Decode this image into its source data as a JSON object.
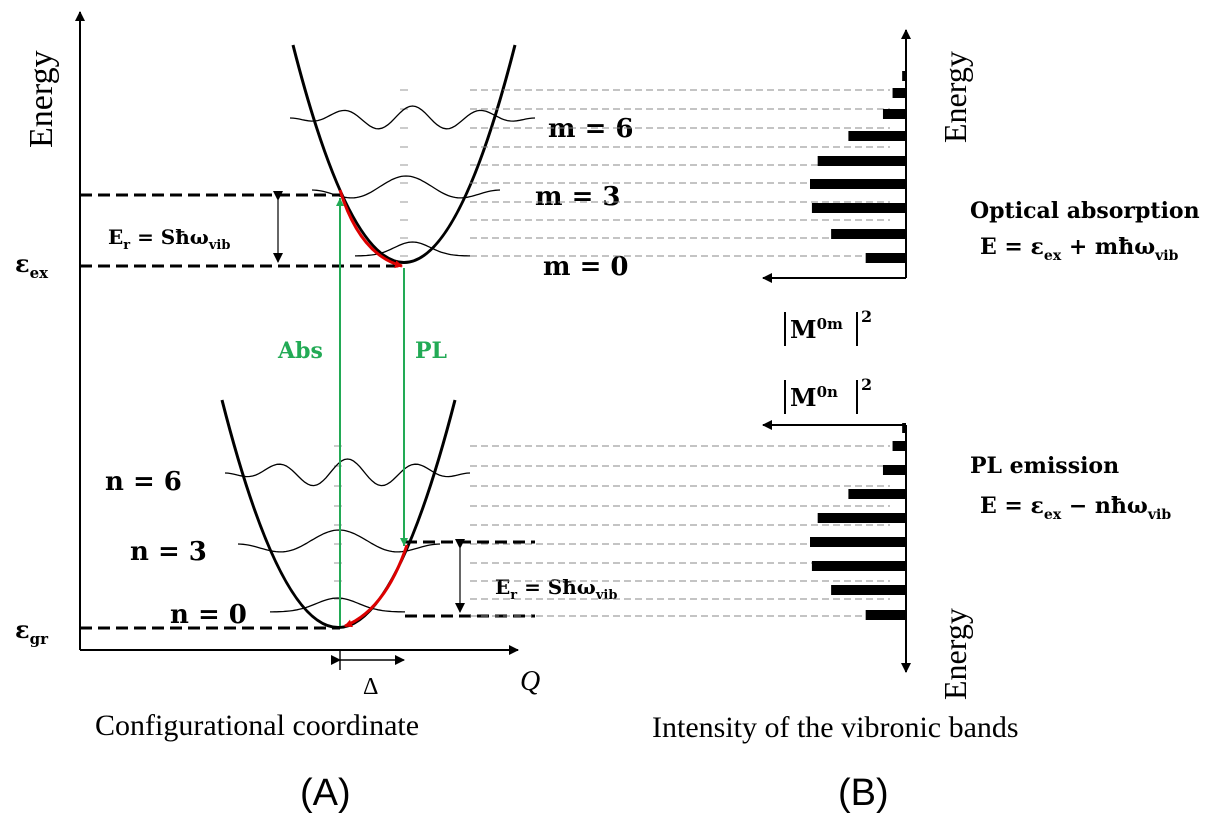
{
  "colors": {
    "absorption": "#22aa55",
    "relaxation": "#dd0000",
    "line": "#000000",
    "guide": "#777777"
  },
  "panel_a": {
    "y_axis_label": "Energy",
    "x_axis_label": "Q",
    "caption": "Configurational coordinate",
    "panel_label": "(A)",
    "eps_ex": "ε",
    "eps_ex_sub": "ex",
    "eps_gr": "ε",
    "eps_gr_sub": "gr",
    "er_top": {
      "e": "E",
      "sub": "r",
      "rest": " = Sħω",
      "vib": "vib"
    },
    "er_bottom": {
      "e": "E",
      "sub": "r",
      "rest": " = Sħω",
      "vib": "vib"
    },
    "abs_label": "Abs",
    "pl_label": "PL",
    "delta_label": "Δ",
    "m_levels": [
      "m = 6",
      "m = 3",
      "m = 0"
    ],
    "n_levels": [
      "n = 6",
      "n = 3",
      "n = 0"
    ]
  },
  "panel_b": {
    "caption": "Intensity of the vibronic bands",
    "panel_label": "(B)",
    "energy_top": "Energy",
    "energy_bottom": "Energy",
    "m0m": {
      "base": "M",
      "sup": "0m",
      "pow": "2"
    },
    "m0n": {
      "base": "M",
      "sup": "0n",
      "pow": "2"
    },
    "abs_title": "Optical absorption",
    "abs_eq": {
      "lhs": "E = ε",
      "sub1": "ex",
      "mid": " + mħω",
      "sub2": "vib"
    },
    "pl_title": "PL emission",
    "pl_eq": {
      "lhs": "E = ε",
      "sub1": "ex",
      "mid": " − nħω",
      "sub2": "vib"
    }
  },
  "chart_data": {
    "type": "bar",
    "absorption_band_intensity": [
      0.42,
      0.78,
      0.98,
      1.0,
      0.92,
      0.6,
      0.24,
      0.14,
      0.04
    ],
    "emission_band_intensity": [
      0.42,
      0.78,
      0.98,
      1.0,
      0.92,
      0.6,
      0.24,
      0.14,
      0.04
    ]
  }
}
